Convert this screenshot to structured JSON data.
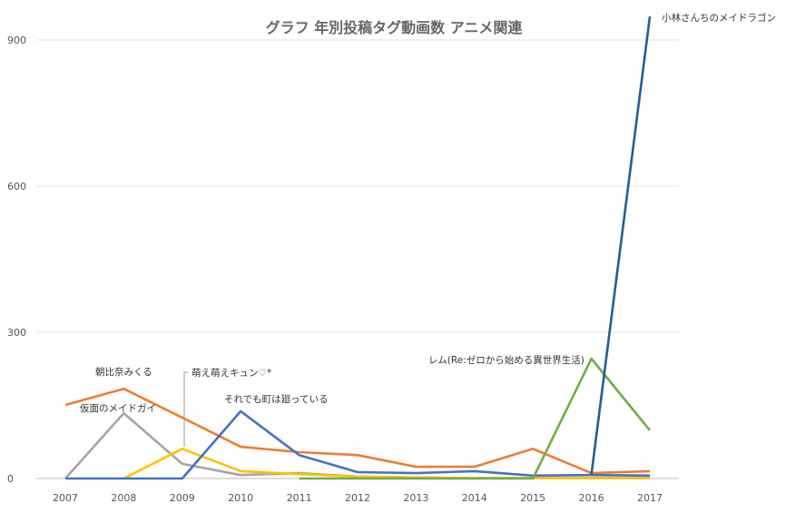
{
  "chart_data": {
    "type": "line",
    "title": "グラフ 年別投稿タグ動画数 アニメ関連",
    "xlabel": "",
    "ylabel": "",
    "x": [
      2007,
      2008,
      2009,
      2010,
      2011,
      2012,
      2013,
      2014,
      2015,
      2016,
      2017
    ],
    "y_ticks": [
      0,
      300,
      600,
      900
    ],
    "ylim": [
      0,
      950
    ],
    "grid": true,
    "legend": "direct labels",
    "series": [
      {
        "name": "朝比奈みくる",
        "color": "#ed7d31",
        "values": [
          151,
          184,
          125,
          65,
          54,
          48,
          24,
          24,
          61,
          11,
          15
        ]
      },
      {
        "name": "仮面のメイドガイ",
        "color": "#a5a5a5",
        "values": [
          0,
          134,
          30,
          7,
          11,
          4,
          2,
          1,
          1,
          1,
          1
        ]
      },
      {
        "name": "萌え萌えキュン♡*",
        "color": "#ffc000",
        "values": [
          null,
          0,
          61,
          15,
          9,
          4,
          2,
          1,
          1,
          1,
          1
        ]
      },
      {
        "name": "それでも町は廻っている",
        "color": "#4472c4",
        "values": [
          0,
          0,
          0,
          138,
          48,
          13,
          11,
          15,
          6,
          7,
          6
        ]
      },
      {
        "name": "レム(Re:ゼロから始める異世界生活)",
        "color": "#70ad47",
        "values": [
          null,
          null,
          null,
          null,
          0,
          0,
          0,
          0,
          0,
          246,
          99
        ]
      },
      {
        "name": "小林さんちのメイドラゴン",
        "color": "#255e91",
        "values": [
          null,
          null,
          null,
          null,
          null,
          null,
          null,
          null,
          null,
          8,
          948
        ]
      }
    ]
  }
}
